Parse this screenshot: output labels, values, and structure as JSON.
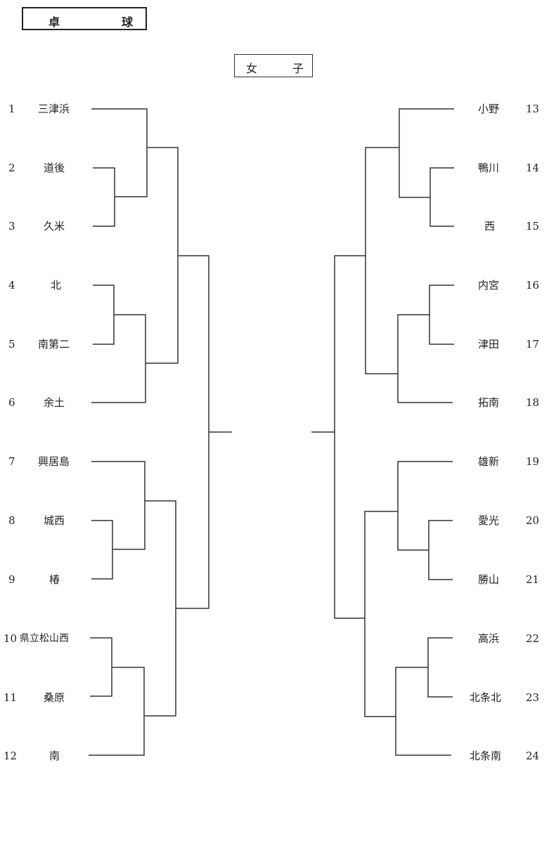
{
  "header": {
    "sport_left": "卓",
    "sport_right": "球",
    "category_left": "女",
    "category_right": "子"
  },
  "left_entries": [
    {
      "no": "1",
      "team": "三津浜"
    },
    {
      "no": "2",
      "team": "道後"
    },
    {
      "no": "3",
      "team": "久米"
    },
    {
      "no": "4",
      "team": "北"
    },
    {
      "no": "5",
      "team": "南第二"
    },
    {
      "no": "6",
      "team": "余土"
    },
    {
      "no": "7",
      "team": "興居島"
    },
    {
      "no": "8",
      "team": "城西"
    },
    {
      "no": "9",
      "team": "椿"
    },
    {
      "no": "10",
      "team": "県立松山西"
    },
    {
      "no": "11",
      "team": "桑原"
    },
    {
      "no": "12",
      "team": "南"
    }
  ],
  "right_entries": [
    {
      "no": "13",
      "team": "小野"
    },
    {
      "no": "14",
      "team": "鴨川"
    },
    {
      "no": "15",
      "team": "西"
    },
    {
      "no": "16",
      "team": "内宮"
    },
    {
      "no": "17",
      "team": "津田"
    },
    {
      "no": "18",
      "team": "拓南"
    },
    {
      "no": "19",
      "team": "雄新"
    },
    {
      "no": "20",
      "team": "愛光"
    },
    {
      "no": "21",
      "team": "勝山"
    },
    {
      "no": "22",
      "team": "高浜"
    },
    {
      "no": "23",
      "team": "北条北"
    },
    {
      "no": "24",
      "team": "北条南"
    }
  ]
}
